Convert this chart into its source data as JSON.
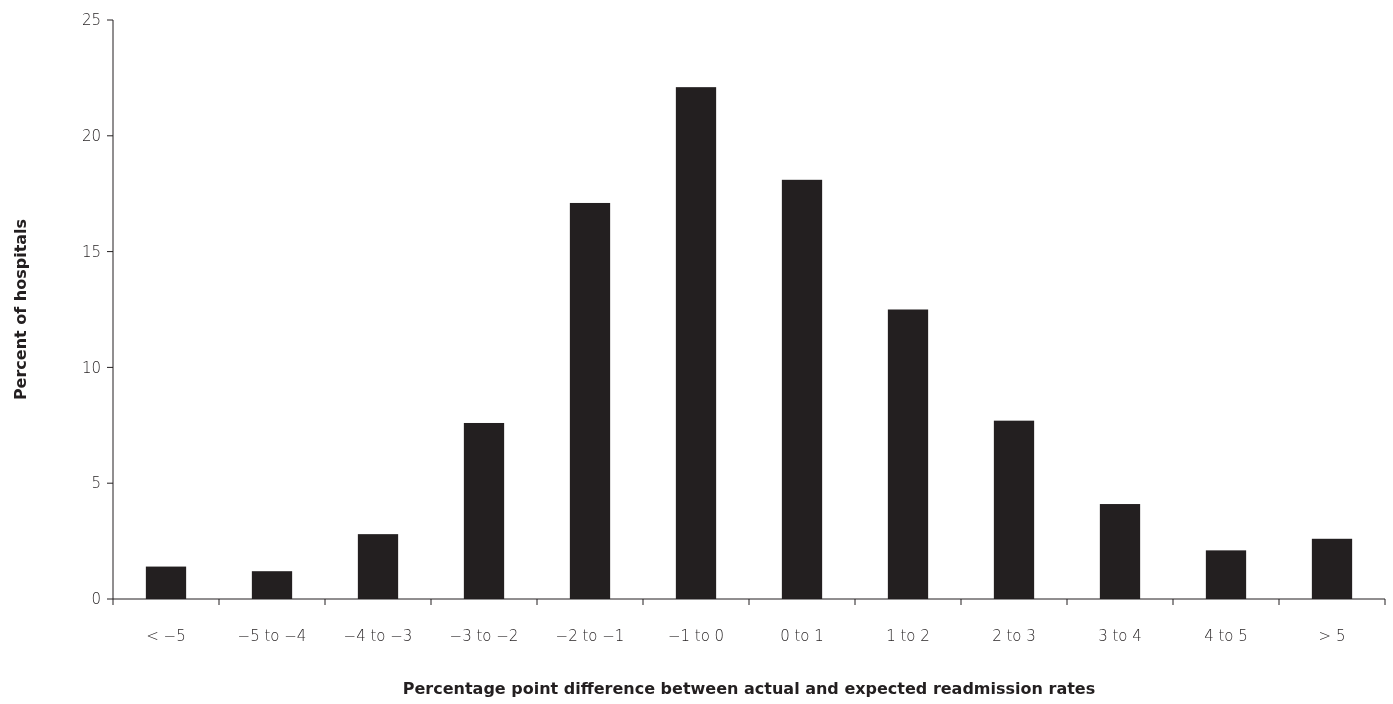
{
  "chart_data": {
    "type": "bar",
    "xlabel": "Percentage point difference between actual and expected readmission rates",
    "ylabel": "Percent of hospitals",
    "categories": [
      "< −5",
      "−5 to −4",
      "−4 to −3",
      "−3 to −2",
      "−2 to −1",
      "−1 to 0",
      "0 to 1",
      "1 to 2",
      "2 to 3",
      "3 to 4",
      "4 to 5",
      "> 5"
    ],
    "values": [
      1.4,
      1.2,
      2.8,
      7.6,
      17.1,
      22.1,
      18.1,
      12.5,
      7.7,
      4.1,
      2.1,
      2.6
    ],
    "color": "#231f20",
    "ylim": [
      0,
      25
    ],
    "yticks": [
      0,
      5,
      10,
      15,
      20,
      25
    ],
    "grid": false
  }
}
